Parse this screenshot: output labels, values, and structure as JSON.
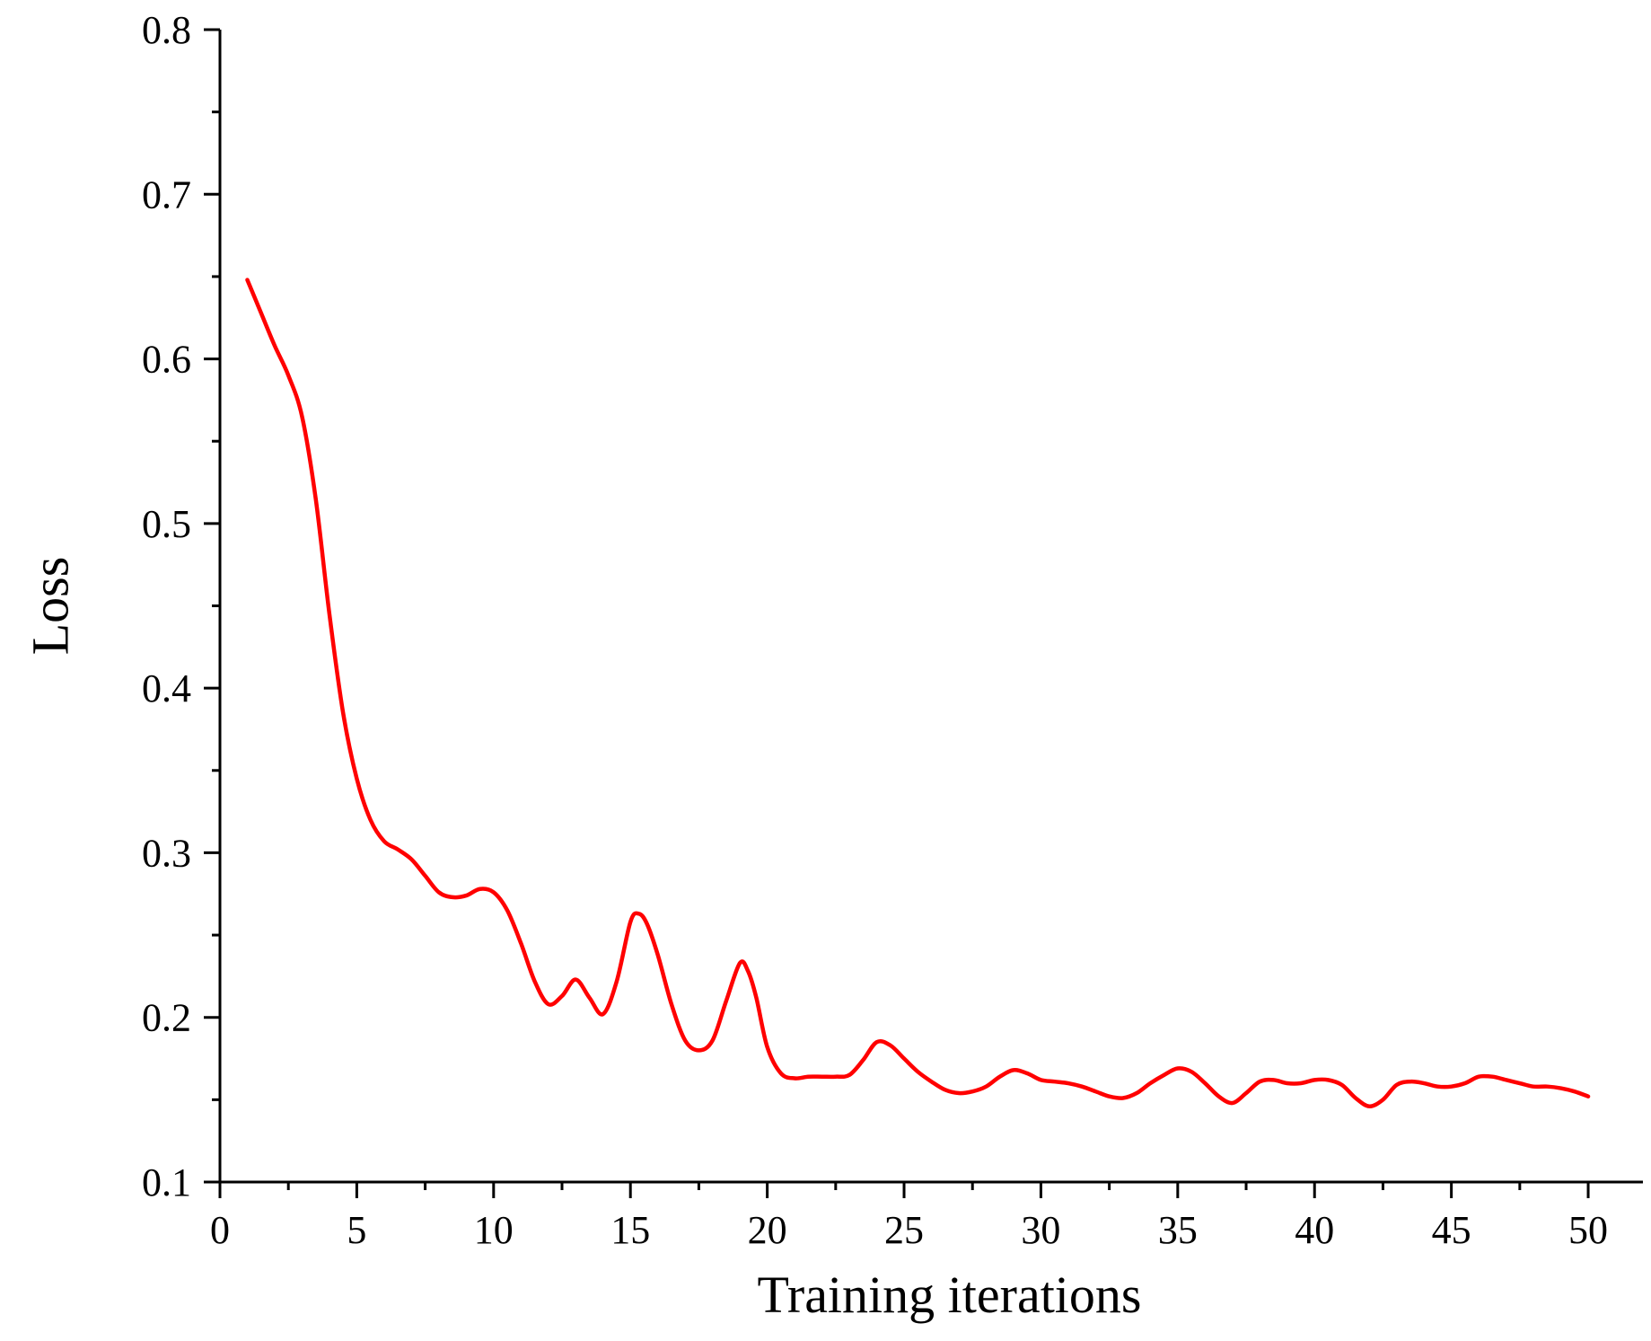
{
  "chart_data": {
    "type": "line",
    "title": "",
    "xlabel": "Training iterations",
    "ylabel": "Loss",
    "xlim": [
      0,
      52
    ],
    "ylim": [
      0.1,
      0.8
    ],
    "x_ticks": [
      0,
      5,
      10,
      15,
      20,
      25,
      30,
      35,
      40,
      45,
      50
    ],
    "x_tick_labels": [
      "0",
      "5",
      "10",
      "15",
      "20",
      "25",
      "30",
      "35",
      "40",
      "45",
      "50"
    ],
    "x_minor_step": 2.5,
    "y_ticks": [
      0.1,
      0.2,
      0.3,
      0.4,
      0.5,
      0.6,
      0.7,
      0.8
    ],
    "y_tick_labels": [
      "0.1",
      "0.2",
      "0.3",
      "0.4",
      "0.5",
      "0.6",
      "0.7",
      "0.8"
    ],
    "y_minor_step": 0.05,
    "grid": false,
    "series": [
      {
        "color": "#ff0000",
        "x": [
          1,
          1.5,
          2,
          2.5,
          3,
          3.5,
          4,
          4.5,
          5,
          5.5,
          6,
          6.5,
          7,
          7.5,
          8,
          8.5,
          9,
          9.5,
          10,
          10.5,
          11,
          11.5,
          12,
          12.5,
          13,
          13.5,
          14,
          14.5,
          15,
          15.3,
          15.6,
          16,
          16.5,
          17,
          17.5,
          18,
          18.5,
          19,
          19.3,
          19.6,
          20,
          20.5,
          21,
          21.5,
          22,
          22.5,
          23,
          23.5,
          24,
          24.5,
          25,
          25.5,
          26,
          26.5,
          27,
          27.5,
          28,
          28.5,
          29,
          29.5,
          30,
          30.5,
          31,
          31.5,
          32,
          32.5,
          33,
          33.5,
          34,
          34.5,
          35,
          35.5,
          36,
          36.5,
          37,
          37.5,
          38,
          38.5,
          39,
          39.5,
          40,
          40.5,
          41,
          41.5,
          42,
          42.5,
          43,
          43.5,
          44,
          44.5,
          45,
          45.5,
          46,
          46.5,
          47,
          47.5,
          48,
          48.5,
          49,
          49.5,
          50
        ],
        "y": [
          0.648,
          0.628,
          0.608,
          0.59,
          0.565,
          0.515,
          0.445,
          0.385,
          0.345,
          0.32,
          0.307,
          0.302,
          0.296,
          0.286,
          0.276,
          0.273,
          0.274,
          0.278,
          0.276,
          0.265,
          0.245,
          0.222,
          0.208,
          0.213,
          0.223,
          0.212,
          0.202,
          0.222,
          0.258,
          0.263,
          0.257,
          0.238,
          0.208,
          0.186,
          0.18,
          0.186,
          0.21,
          0.233,
          0.228,
          0.212,
          0.182,
          0.166,
          0.163,
          0.164,
          0.164,
          0.164,
          0.165,
          0.174,
          0.185,
          0.183,
          0.175,
          0.167,
          0.161,
          0.156,
          0.154,
          0.155,
          0.158,
          0.164,
          0.168,
          0.166,
          0.162,
          0.161,
          0.16,
          0.158,
          0.155,
          0.152,
          0.151,
          0.154,
          0.16,
          0.165,
          0.169,
          0.167,
          0.16,
          0.152,
          0.148,
          0.154,
          0.161,
          0.162,
          0.16,
          0.16,
          0.162,
          0.162,
          0.159,
          0.151,
          0.146,
          0.15,
          0.159,
          0.161,
          0.16,
          0.158,
          0.158,
          0.16,
          0.164,
          0.164,
          0.162,
          0.16,
          0.158,
          0.158,
          0.157,
          0.155,
          0.152
        ]
      }
    ]
  }
}
